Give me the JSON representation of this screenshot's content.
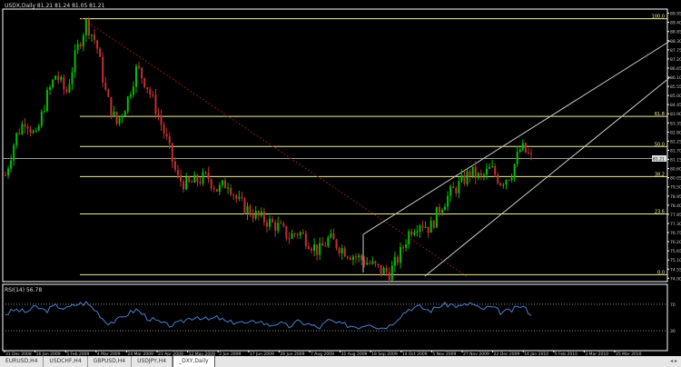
{
  "window": {
    "title": "USDX,Daily  81.21 81.24 81.05 81.21"
  },
  "indicator": {
    "title": "RSI(14) 56.78",
    "levels": [
      "70",
      "30"
    ]
  },
  "tabs": [
    {
      "label": "EURUSD,H4",
      "active": false
    },
    {
      "label": "USDCHF,H4",
      "active": false
    },
    {
      "label": "GBPUSD,H4",
      "active": false
    },
    {
      "label": "USDJPY,H4",
      "active": false
    },
    {
      "label": "_DXY,Daily",
      "active": true
    }
  ],
  "colors": {
    "background": "#000000",
    "bull": "#00c000",
    "bear": "#c03030",
    "fib": "#f0f0a0",
    "channel": "#c8d0c8",
    "rsi": "#4a7fd0",
    "trend": "#8b1a1a"
  },
  "chart_data": {
    "type": "candlestick",
    "symbol": "USDX",
    "timeframe": "Daily",
    "ylim": [
      73.8,
      90.2
    ],
    "price_labels": [
      "89.95",
      "89.40",
      "88.85",
      "88.30",
      "87.75",
      "87.20",
      "86.65",
      "86.10",
      "85.55",
      "85.00",
      "84.45",
      "83.90",
      "83.35",
      "82.80",
      "82.25",
      "81.70",
      "81.15",
      "80.60",
      "80.05",
      "79.50",
      "78.95",
      "78.40",
      "77.85",
      "77.30",
      "76.75",
      "76.20",
      "75.65",
      "75.10",
      "74.55",
      "74.00"
    ],
    "current_price": "81.21",
    "fib_levels": [
      {
        "label": "100.0",
        "price": 89.62
      },
      {
        "label": "61.8",
        "price": 83.74
      },
      {
        "label": "50.0",
        "price": 81.93
      },
      {
        "label": "38.2",
        "price": 80.12
      },
      {
        "label": "23.6",
        "price": 77.87
      },
      {
        "label": "0.0",
        "price": 74.22
      }
    ],
    "time_labels": [
      "31 Dec 2008",
      "16 Jan 2009",
      "5 Feb 2009",
      "4 Mar 2009",
      "24 Mar 2009",
      "21 Apr 2009",
      "12 May 2009",
      "2 Jun 2009",
      "17 Jun 2009",
      "26 Jun 2009",
      "7 Aug 2009",
      "31 Aug 2009",
      "18 Sep 2009",
      "14 Oct 2009",
      "5 Nov 2009",
      "27 Nov 2009",
      "22 Dec 2009",
      "14 Jan 2010",
      "5 Feb 2010",
      "3 Mar 2010",
      "25 Mar 2010"
    ],
    "closes": [
      80.2,
      82.5,
      83.6,
      82.4,
      84.8,
      86.3,
      85.1,
      87.6,
      89.4,
      88.1,
      84.9,
      83.3,
      84.6,
      86.7,
      85.6,
      84.0,
      82.2,
      80.0,
      79.6,
      79.9,
      80.1,
      79.3,
      79.8,
      78.6,
      78.1,
      77.7,
      77.4,
      77.1,
      76.5,
      76.8,
      76.2,
      75.6,
      76.4,
      75.9,
      75.5,
      75.2,
      74.9,
      74.5,
      74.3,
      75.4,
      76.9,
      77.4,
      77.0,
      78.3,
      79.1,
      79.7,
      80.4,
      80.0,
      80.6,
      79.8,
      80.3,
      81.9,
      81.2
    ],
    "rsi": [
      55,
      62,
      58,
      66,
      60,
      68,
      63,
      70,
      72,
      60,
      42,
      45,
      55,
      62,
      50,
      44,
      38,
      40,
      48,
      52,
      46,
      50,
      42,
      44,
      40,
      46,
      38,
      42,
      36,
      44,
      40,
      34,
      46,
      40,
      38,
      36,
      42,
      34,
      38,
      52,
      64,
      66,
      60,
      68,
      70,
      66,
      72,
      62,
      66,
      58,
      60,
      68,
      56
    ]
  }
}
